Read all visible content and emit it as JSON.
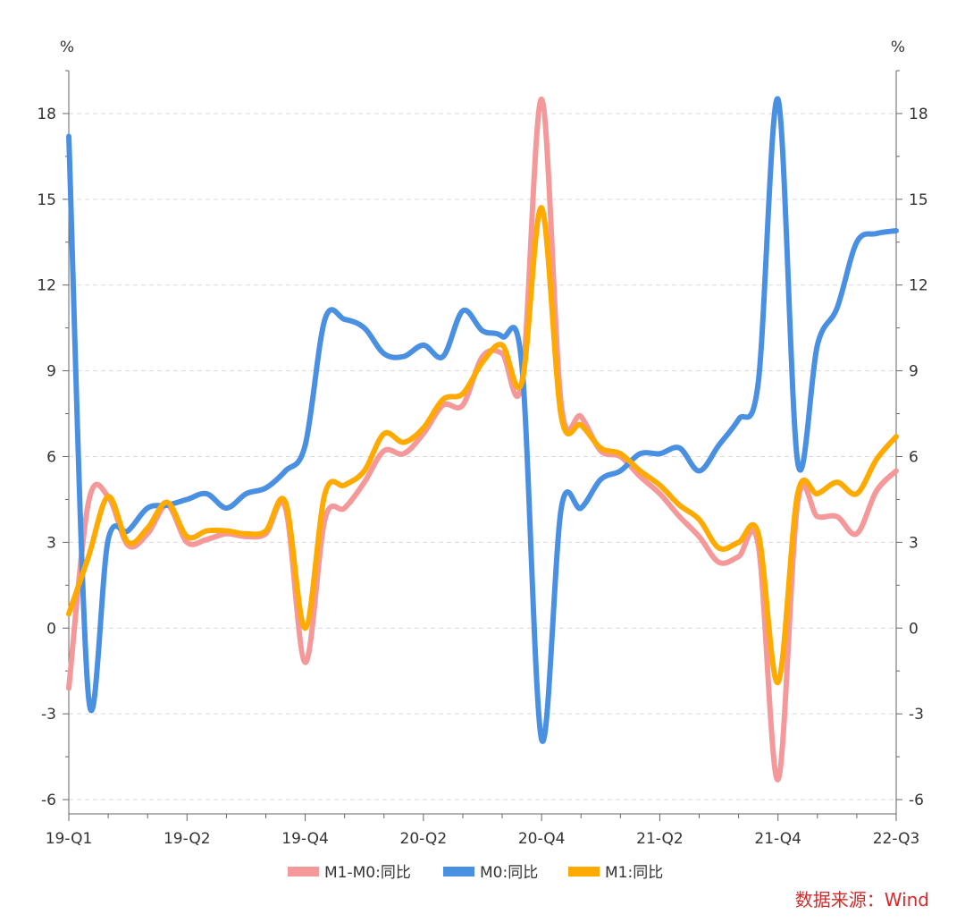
{
  "chart_data": {
    "type": "line",
    "left_unit": "%",
    "right_unit": "%",
    "ylim": [
      -6.5,
      19.5
    ],
    "yticks": [
      -6,
      -3,
      0,
      3,
      6,
      9,
      12,
      15,
      18
    ],
    "xlim": [
      0,
      42
    ],
    "xtick_labels": [
      {
        "x": 0,
        "label": "19-Q1"
      },
      {
        "x": 6,
        "label": "19-Q2"
      },
      {
        "x": 12,
        "label": "19-Q4"
      },
      {
        "x": 18,
        "label": "20-Q2"
      },
      {
        "x": 24,
        "label": "20-Q4"
      },
      {
        "x": 30,
        "label": "21-Q2"
      },
      {
        "x": 36,
        "label": "21-Q4"
      },
      {
        "x": 42,
        "label": "22-Q3"
      }
    ],
    "grid": true,
    "legend_position": "bottom",
    "series": [
      {
        "name": "M1-M0:同比",
        "color": "#F4989A",
        "points": [
          [
            0,
            -2.1
          ],
          [
            1,
            4.4
          ],
          [
            2,
            4.6
          ],
          [
            3,
            2.9
          ],
          [
            4,
            3.3
          ],
          [
            5,
            4.3
          ],
          [
            6,
            3.0
          ],
          [
            7,
            3.1
          ],
          [
            8,
            3.3
          ],
          [
            9,
            3.2
          ],
          [
            10,
            3.3
          ],
          [
            11,
            4.2
          ],
          [
            12,
            -1.2
          ],
          [
            13,
            3.8
          ],
          [
            14,
            4.2
          ],
          [
            15,
            5.1
          ],
          [
            16,
            6.2
          ],
          [
            17,
            6.1
          ],
          [
            18,
            6.8
          ],
          [
            19,
            7.8
          ],
          [
            20,
            7.8
          ],
          [
            21,
            9.5
          ],
          [
            22,
            9.6
          ],
          [
            23,
            8.6
          ],
          [
            24,
            18.5
          ],
          [
            25,
            7.8
          ],
          [
            26,
            7.4
          ],
          [
            27,
            6.2
          ],
          [
            28,
            6.0
          ],
          [
            29,
            5.3
          ],
          [
            30,
            4.7
          ],
          [
            31,
            3.9
          ],
          [
            32,
            3.2
          ],
          [
            33,
            2.3
          ],
          [
            34,
            2.5
          ],
          [
            35,
            2.9
          ],
          [
            36,
            -5.3
          ],
          [
            37,
            4.4
          ],
          [
            38,
            3.9
          ],
          [
            39,
            3.9
          ],
          [
            40,
            3.3
          ],
          [
            41,
            4.8
          ],
          [
            42,
            5.5
          ]
        ]
      },
      {
        "name": "M0:同比",
        "color": "#4A90E2",
        "points": [
          [
            0,
            17.2
          ],
          [
            1,
            -2.4
          ],
          [
            2,
            3.1
          ],
          [
            3,
            3.4
          ],
          [
            4,
            4.2
          ],
          [
            5,
            4.3
          ],
          [
            6,
            4.5
          ],
          [
            7,
            4.7
          ],
          [
            8,
            4.2
          ],
          [
            9,
            4.7
          ],
          [
            10,
            4.9
          ],
          [
            11,
            5.5
          ],
          [
            12,
            6.4
          ],
          [
            13,
            10.8
          ],
          [
            14,
            10.8
          ],
          [
            15,
            10.5
          ],
          [
            16,
            9.6
          ],
          [
            17,
            9.5
          ],
          [
            18,
            9.9
          ],
          [
            19,
            9.5
          ],
          [
            20,
            11.1
          ],
          [
            21,
            10.4
          ],
          [
            22,
            10.2
          ],
          [
            23,
            9.2
          ],
          [
            24,
            -3.9
          ],
          [
            25,
            4.2
          ],
          [
            26,
            4.2
          ],
          [
            27,
            5.2
          ],
          [
            28,
            5.5
          ],
          [
            29,
            6.1
          ],
          [
            30,
            6.1
          ],
          [
            31,
            6.3
          ],
          [
            32,
            5.5
          ],
          [
            33,
            6.4
          ],
          [
            34,
            7.3
          ],
          [
            35,
            8.6
          ],
          [
            36,
            18.5
          ],
          [
            37,
            5.8
          ],
          [
            38,
            9.9
          ],
          [
            39,
            11.2
          ],
          [
            40,
            13.5
          ],
          [
            41,
            13.8
          ],
          [
            42,
            13.9
          ]
        ]
      },
      {
        "name": "M1:同比",
        "color": "#FFAA00",
        "points": [
          [
            0,
            0.5
          ],
          [
            1,
            2.5
          ],
          [
            2,
            4.6
          ],
          [
            3,
            3.0
          ],
          [
            4,
            3.5
          ],
          [
            5,
            4.4
          ],
          [
            6,
            3.2
          ],
          [
            7,
            3.4
          ],
          [
            8,
            3.4
          ],
          [
            9,
            3.3
          ],
          [
            10,
            3.4
          ],
          [
            11,
            4.4
          ],
          [
            12,
            0.0
          ],
          [
            13,
            4.7
          ],
          [
            14,
            5.0
          ],
          [
            15,
            5.5
          ],
          [
            16,
            6.8
          ],
          [
            17,
            6.5
          ],
          [
            18,
            7.0
          ],
          [
            19,
            8.0
          ],
          [
            20,
            8.2
          ],
          [
            21,
            9.3
          ],
          [
            22,
            9.9
          ],
          [
            23,
            8.6
          ],
          [
            24,
            14.7
          ],
          [
            25,
            7.4
          ],
          [
            26,
            7.1
          ],
          [
            27,
            6.3
          ],
          [
            28,
            6.1
          ],
          [
            29,
            5.5
          ],
          [
            30,
            5.0
          ],
          [
            31,
            4.3
          ],
          [
            32,
            3.8
          ],
          [
            33,
            2.8
          ],
          [
            34,
            3.0
          ],
          [
            35,
            3.3
          ],
          [
            36,
            -1.9
          ],
          [
            37,
            4.7
          ],
          [
            38,
            4.7
          ],
          [
            39,
            5.1
          ],
          [
            40,
            4.7
          ],
          [
            41,
            5.9
          ],
          [
            42,
            6.7
          ]
        ]
      }
    ],
    "source": "数据来源：Wind"
  }
}
